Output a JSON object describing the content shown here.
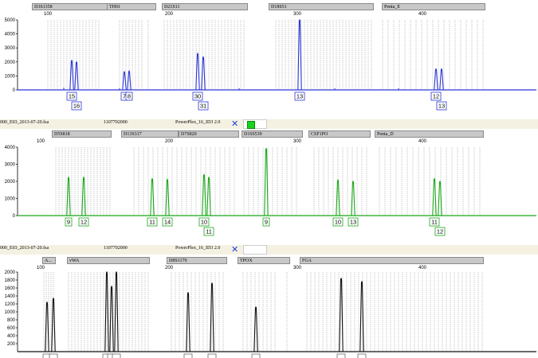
{
  "panels": [
    {
      "id": "blue",
      "color": "#2a36d6",
      "header": null,
      "loci": [
        "D3S1358",
        "TH01",
        "D21S11",
        "D18S51",
        "Penta_E"
      ],
      "y_ticks": [
        "5000",
        "4000",
        "3000",
        "2000",
        "1000",
        "0"
      ],
      "x_ticks": [
        "100",
        "200",
        "300",
        "400"
      ],
      "peaks": [
        {
          "x": 90,
          "h": 0.42
        },
        {
          "x": 96,
          "h": 0.4
        },
        {
          "x": 156,
          "h": 0.26
        },
        {
          "x": 162,
          "h": 0.27
        },
        {
          "x": 248,
          "h": 0.52
        },
        {
          "x": 255,
          "h": 0.47
        },
        {
          "x": 376,
          "h": 1.0
        },
        {
          "x": 547,
          "h": 0.3
        },
        {
          "x": 554,
          "h": 0.3
        }
      ],
      "alleles": [
        {
          "label": "15",
          "row": 0
        },
        {
          "label": "16",
          "row": 1
        },
        {
          "label": "7",
          "row": 0
        },
        {
          "label": "8",
          "row": 0
        },
        {
          "label": "30",
          "row": 0
        },
        {
          "label": "31",
          "row": 1
        },
        {
          "label": "13",
          "row": 0
        },
        {
          "label": "12",
          "row": 0
        },
        {
          "label": "13",
          "row": 1
        }
      ]
    },
    {
      "id": "green",
      "color": "#1aa81a",
      "header": {
        "file": "000_E03_2013-07-20.fsa",
        "sample": "1107702000",
        "panel": "PowerPlex_16_ID3 2.0"
      },
      "loci": [
        "D5S818",
        "D13S317",
        "D7S820",
        "D16S539",
        "CSF1PO",
        "Penta_D"
      ],
      "y_ticks": [
        "4000",
        "3000",
        "2000",
        "1000",
        "0"
      ],
      "x_ticks": [
        "100",
        "200",
        "300",
        "400"
      ],
      "peaks": [
        {
          "x": 86,
          "h": 0.56
        },
        {
          "x": 105,
          "h": 0.56
        },
        {
          "x": 191,
          "h": 0.54
        },
        {
          "x": 210,
          "h": 0.53
        },
        {
          "x": 256,
          "h": 0.6
        },
        {
          "x": 262,
          "h": 0.56
        },
        {
          "x": 334,
          "h": 0.98
        },
        {
          "x": 424,
          "h": 0.52
        },
        {
          "x": 443,
          "h": 0.5
        },
        {
          "x": 545,
          "h": 0.54
        },
        {
          "x": 552,
          "h": 0.5
        }
      ],
      "alleles": [
        {
          "label": "9",
          "row": 0
        },
        {
          "label": "12",
          "row": 0
        },
        {
          "label": "11",
          "row": 0
        },
        {
          "label": "14",
          "row": 0
        },
        {
          "label": "10",
          "row": 0
        },
        {
          "label": "11",
          "row": 1
        },
        {
          "label": "9",
          "row": 0
        },
        {
          "label": "10",
          "row": 0
        },
        {
          "label": "13",
          "row": 0
        },
        {
          "label": "11",
          "row": 0
        },
        {
          "label": "12",
          "row": 1
        }
      ]
    },
    {
      "id": "black",
      "color": "#111111",
      "header": {
        "file": "000_E03_2013-07-20.fsa",
        "sample": "1107702000",
        "panel": "PowerPlex_16_ID3 2.0"
      },
      "loci": [
        "A...",
        "vWA",
        "D8S1179",
        "TPOX",
        "FGA"
      ],
      "y_ticks": [
        "2000",
        "1800",
        "1600",
        "1400",
        "1200",
        "1000",
        "800",
        "600",
        "400",
        "200"
      ],
      "x_ticks": [
        "100",
        "200",
        "300",
        "400"
      ],
      "peaks": [
        {
          "x": 59,
          "h": 0.62
        },
        {
          "x": 67,
          "h": 0.67
        },
        {
          "x": 134,
          "h": 1.0
        },
        {
          "x": 140,
          "h": 0.82
        },
        {
          "x": 146,
          "h": 1.0
        },
        {
          "x": 236,
          "h": 0.74
        },
        {
          "x": 266,
          "h": 0.86
        },
        {
          "x": 321,
          "h": 0.56
        },
        {
          "x": 428,
          "h": 0.92
        },
        {
          "x": 454,
          "h": 0.88
        }
      ],
      "alleles": []
    }
  ]
}
